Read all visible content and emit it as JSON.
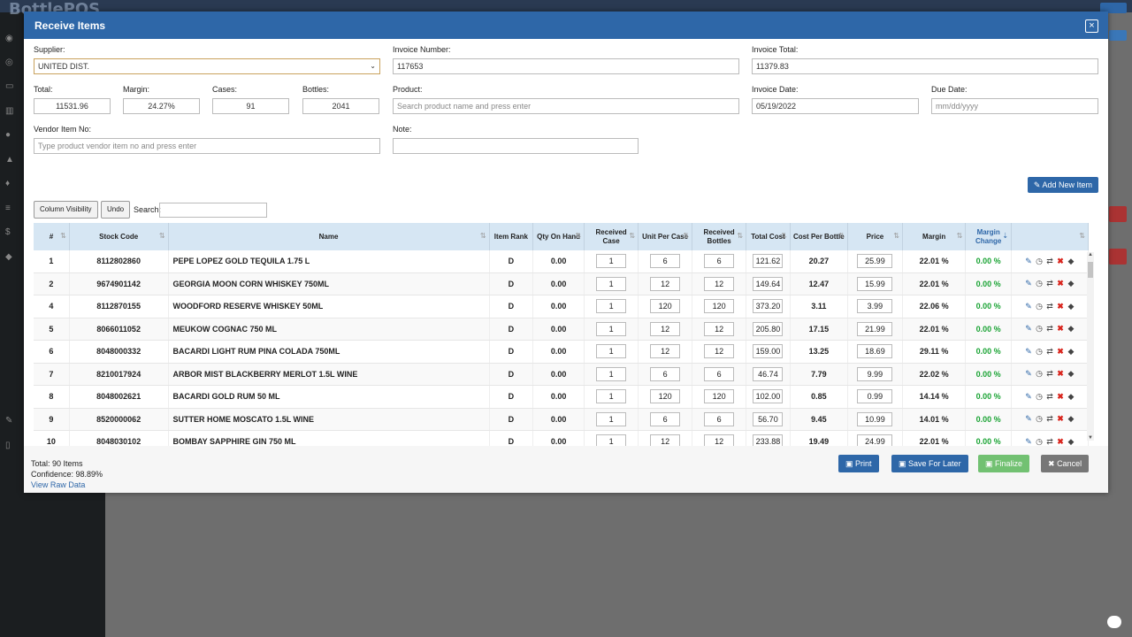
{
  "app": {
    "logo_text": "BottlePOS"
  },
  "modal": {
    "title": "Receive Items",
    "close": "×"
  },
  "form": {
    "supplier_label": "Supplier:",
    "supplier_value": "UNITED DIST.",
    "invoice_number_label": "Invoice Number:",
    "invoice_number_value": "117653",
    "invoice_total_label": "Invoice Total:",
    "invoice_total_value": "11379.83",
    "total_label": "Total:",
    "total_value": "11531.96",
    "margin_label": "Margin:",
    "margin_value": "24.27%",
    "cases_label": "Cases:",
    "cases_value": "91",
    "bottles_label": "Bottles:",
    "bottles_value": "2041",
    "product_label": "Product:",
    "product_placeholder": "Search product name and press enter",
    "invoice_date_label": "Invoice Date:",
    "invoice_date_value": "05/19/2022",
    "due_date_label": "Due Date:",
    "due_date_placeholder": "mm/dd/yyyy",
    "vendor_item_label": "Vendor Item No:",
    "vendor_item_placeholder": "Type product vendor item no and press enter",
    "note_label": "Note:"
  },
  "toolbar": {
    "add_new_item": "Add New Item",
    "column_visibility": "Column Visibility",
    "undo": "Undo",
    "search_label": "Search:"
  },
  "table": {
    "headers": [
      "#",
      "Stock Code",
      "Name",
      "Item Rank",
      "Qty On Hand",
      "Received Case",
      "Unit Per Case",
      "Received Bottles",
      "Total Cost",
      "Cost Per Bottle",
      "Price",
      "Margin",
      "Margin Change",
      ""
    ],
    "rows": [
      {
        "n": "1",
        "code": "8112802860",
        "name": "PEPE LOPEZ GOLD TEQUILA 1.75 L",
        "rank": "D",
        "qty": "0.00",
        "case": "1",
        "upc": "6",
        "bottles": "6",
        "cost": "121.62",
        "cpb": "20.27",
        "price": "25.99",
        "margin": "22.01 %",
        "change": "0.00 %"
      },
      {
        "n": "2",
        "code": "9674901142",
        "name": "GEORGIA MOON CORN WHISKEY 750ML",
        "rank": "D",
        "qty": "0.00",
        "case": "1",
        "upc": "12",
        "bottles": "12",
        "cost": "149.64",
        "cpb": "12.47",
        "price": "15.99",
        "margin": "22.01 %",
        "change": "0.00 %"
      },
      {
        "n": "4",
        "code": "8112870155",
        "name": "WOODFORD RESERVE WHISKEY 50ML",
        "rank": "D",
        "qty": "0.00",
        "case": "1",
        "upc": "120",
        "bottles": "120",
        "cost": "373.20",
        "cpb": "3.11",
        "price": "3.99",
        "margin": "22.06 %",
        "change": "0.00 %"
      },
      {
        "n": "5",
        "code": "8066011052",
        "name": "MEUKOW COGNAC 750 ML",
        "rank": "D",
        "qty": "0.00",
        "case": "1",
        "upc": "12",
        "bottles": "12",
        "cost": "205.80",
        "cpb": "17.15",
        "price": "21.99",
        "margin": "22.01 %",
        "change": "0.00 %"
      },
      {
        "n": "6",
        "code": "8048000332",
        "name": "BACARDI LIGHT RUM PINA COLADA 750ML",
        "rank": "D",
        "qty": "0.00",
        "case": "1",
        "upc": "12",
        "bottles": "12",
        "cost": "159.00",
        "cpb": "13.25",
        "price": "18.69",
        "margin": "29.11 %",
        "change": "0.00 %"
      },
      {
        "n": "7",
        "code": "8210017924",
        "name": "ARBOR MIST BLACKBERRY MERLOT 1.5L WINE",
        "rank": "D",
        "qty": "0.00",
        "case": "1",
        "upc": "6",
        "bottles": "6",
        "cost": "46.74",
        "cpb": "7.79",
        "price": "9.99",
        "margin": "22.02 %",
        "change": "0.00 %"
      },
      {
        "n": "8",
        "code": "8048002621",
        "name": "BACARDI GOLD RUM 50 ML",
        "rank": "D",
        "qty": "0.00",
        "case": "1",
        "upc": "120",
        "bottles": "120",
        "cost": "102.00",
        "cpb": "0.85",
        "price": "0.99",
        "margin": "14.14 %",
        "change": "0.00 %"
      },
      {
        "n": "9",
        "code": "8520000062",
        "name": "SUTTER HOME MOSCATO 1.5L WINE",
        "rank": "D",
        "qty": "0.00",
        "case": "1",
        "upc": "6",
        "bottles": "6",
        "cost": "56.70",
        "cpb": "9.45",
        "price": "10.99",
        "margin": "14.01 %",
        "change": "0.00 %"
      },
      {
        "n": "10",
        "code": "8048030102",
        "name": "BOMBAY SAPPHIRE GIN 750 ML",
        "rank": "D",
        "qty": "0.00",
        "case": "1",
        "upc": "12",
        "bottles": "12",
        "cost": "233.88",
        "cpb": "19.49",
        "price": "24.99",
        "margin": "22.01 %",
        "change": "0.00 %"
      }
    ]
  },
  "footer": {
    "total_items": "Total: 90 Items",
    "confidence": "Confidence: 98.89%",
    "view_raw": "View Raw Data",
    "print": "Print",
    "save_later": "Save For Later",
    "finalize": "Finalize",
    "cancel": "Cancel"
  }
}
